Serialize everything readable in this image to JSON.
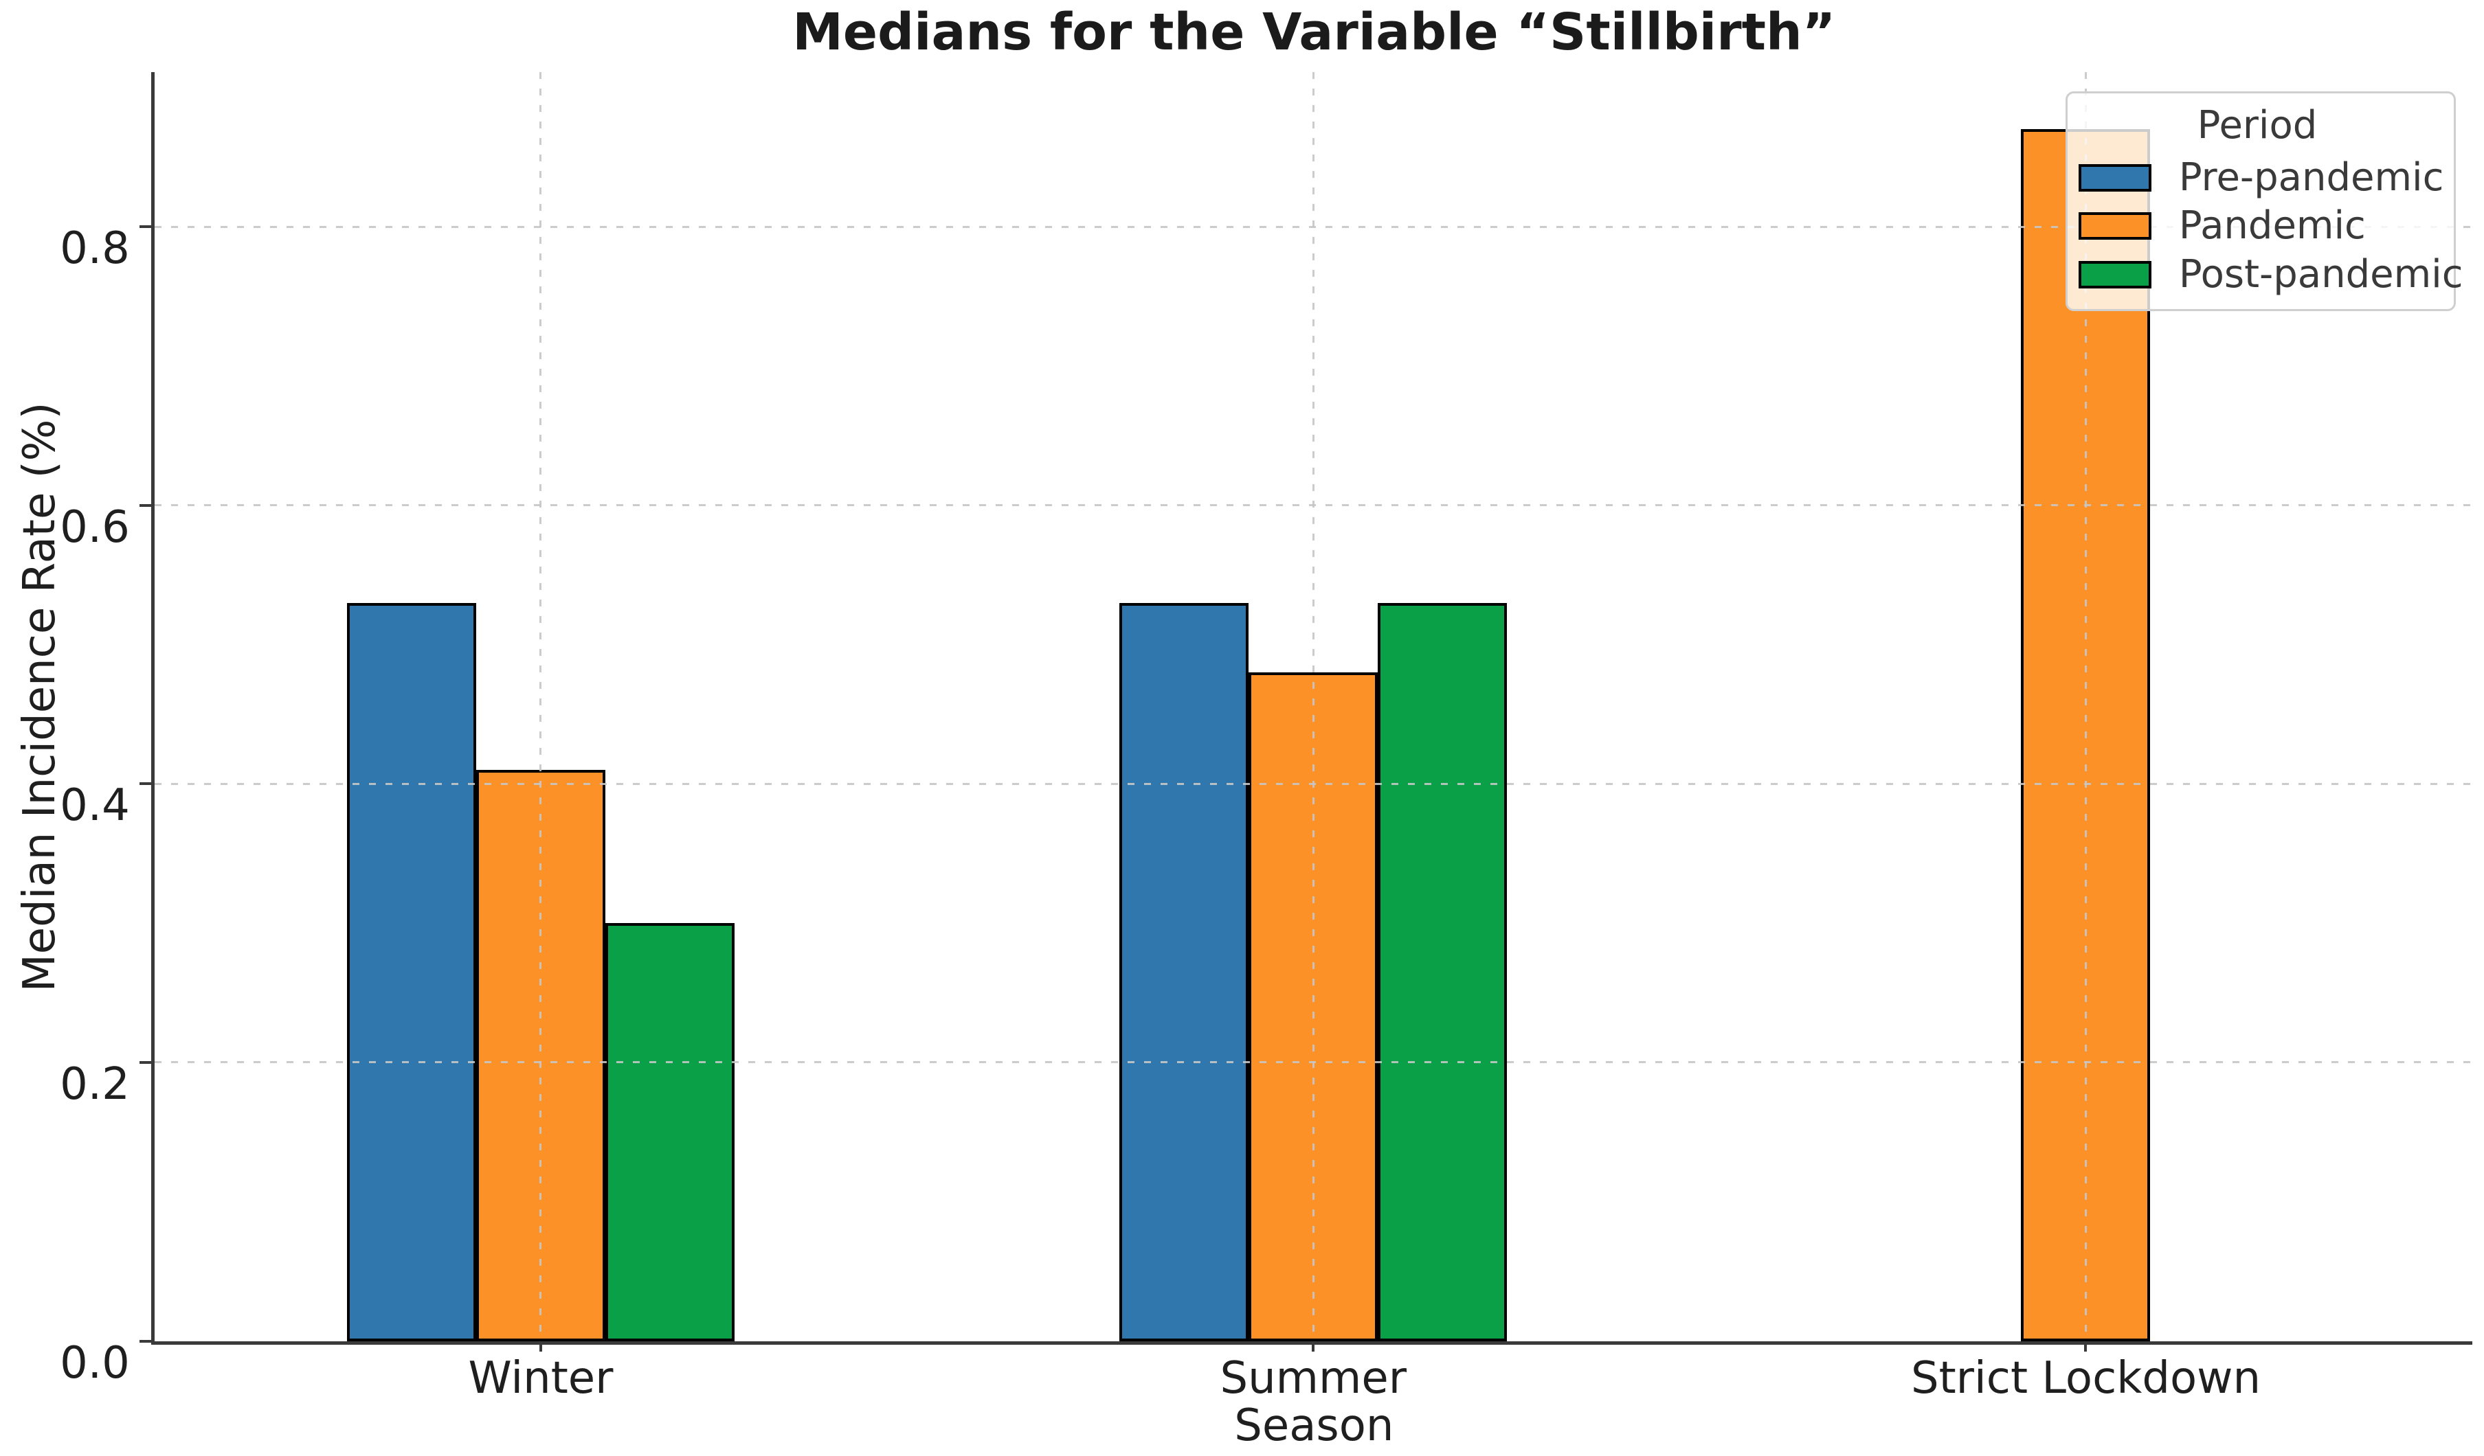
{
  "figure": {
    "title": "Medians for the Variable “Stillbirth”"
  },
  "axes": {
    "xlabel": "Season",
    "ylabel": "Median Incidence Rate (%)",
    "ytick_labels": [
      "0.0",
      "0.2",
      "0.4",
      "0.6",
      "0.8"
    ]
  },
  "legend": {
    "title": "Period",
    "items": [
      "Pre-pandemic",
      "Pandemic",
      "Post-pandemic"
    ]
  },
  "chart_data": {
    "type": "bar",
    "title": "Medians for the Variable “Stillbirth”",
    "xlabel": "Season",
    "ylabel": "Median Incidence Rate (%)",
    "categories": [
      "Winter",
      "Summer",
      "Strict Lockdown"
    ],
    "series": [
      {
        "name": "Pre-pandemic",
        "color": "#2f77ad",
        "values": [
          0.53,
          0.53,
          null
        ]
      },
      {
        "name": "Pandemic",
        "color": "#fb9127",
        "values": [
          0.41,
          0.48,
          0.87
        ]
      },
      {
        "name": "Post-pandemic",
        "color": "#0aa047",
        "values": [
          0.3,
          0.53,
          null
        ]
      }
    ],
    "yticks": [
      0.0,
      0.2,
      0.4,
      0.6,
      0.8
    ],
    "ylim": [
      0,
      0.911
    ],
    "bar_edge_color": "#000000",
    "grid": "dashed",
    "gridlines_over_bars": true,
    "legend_title": "Period",
    "legend_position": "upper right"
  }
}
